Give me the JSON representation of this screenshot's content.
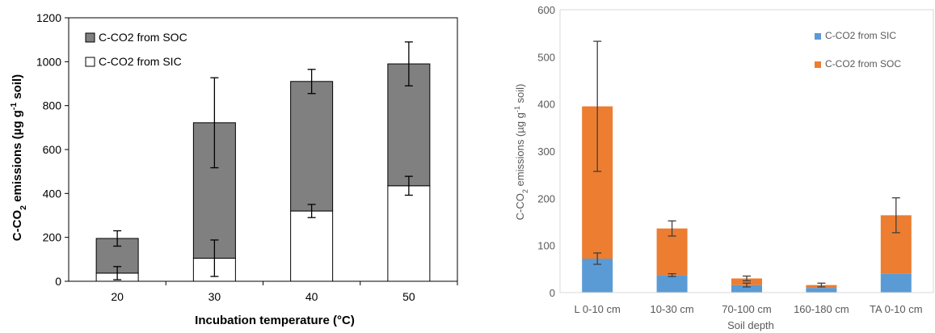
{
  "chart_data": [
    {
      "type": "bar",
      "stacked": true,
      "categories": [
        "20",
        "30",
        "40",
        "50"
      ],
      "series": [
        {
          "name": "C-CO2 from SIC",
          "values": [
            37,
            105,
            320,
            435
          ],
          "error": [
            30,
            83,
            30,
            43
          ],
          "color": "#ffffff"
        },
        {
          "name": "C-CO2 from SOC",
          "values": [
            158,
            617,
            590,
            555
          ],
          "error": [
            35,
            205,
            55,
            100
          ],
          "color": "#808080"
        }
      ],
      "legend_order": [
        1,
        0
      ],
      "xlabel": "Incubation temperature (°C)",
      "ylabel_parts": [
        "C-CO",
        "2",
        " emissions (µg g",
        "-1",
        " soil)"
      ],
      "ylim": [
        0,
        1200
      ],
      "yticks": [
        "0",
        "200",
        "400",
        "600",
        "800",
        "1000",
        "1200"
      ],
      "grid": false,
      "legend_position": "top-left"
    },
    {
      "type": "bar",
      "stacked": true,
      "categories": [
        "L 0-10 cm",
        "10-30 cm",
        "70-100 cm",
        "160-180 cm",
        "TA 0-10 cm"
      ],
      "series": [
        {
          "name": "C-CO2 from SIC",
          "values": [
            72,
            37,
            16,
            10,
            40
          ],
          "error": [
            12,
            3,
            4,
            0,
            0
          ],
          "color": "#5b9bd5"
        },
        {
          "name": "C-CO2 from SOC",
          "values": [
            323,
            99,
            14,
            6,
            124
          ],
          "error": [
            138,
            16,
            5,
            4,
            37
          ],
          "color": "#ed7d31"
        }
      ],
      "legend_order": [
        0,
        1
      ],
      "xlabel": "Soil depth",
      "ylabel_parts": [
        "C-CO",
        "2",
        " emissions (µg g",
        "-1",
        " soil)"
      ],
      "ylim": [
        0,
        600
      ],
      "yticks": [
        "0",
        "100",
        "200",
        "300",
        "400",
        "500",
        "600"
      ],
      "grid": false,
      "legend_position": "top-right"
    }
  ]
}
